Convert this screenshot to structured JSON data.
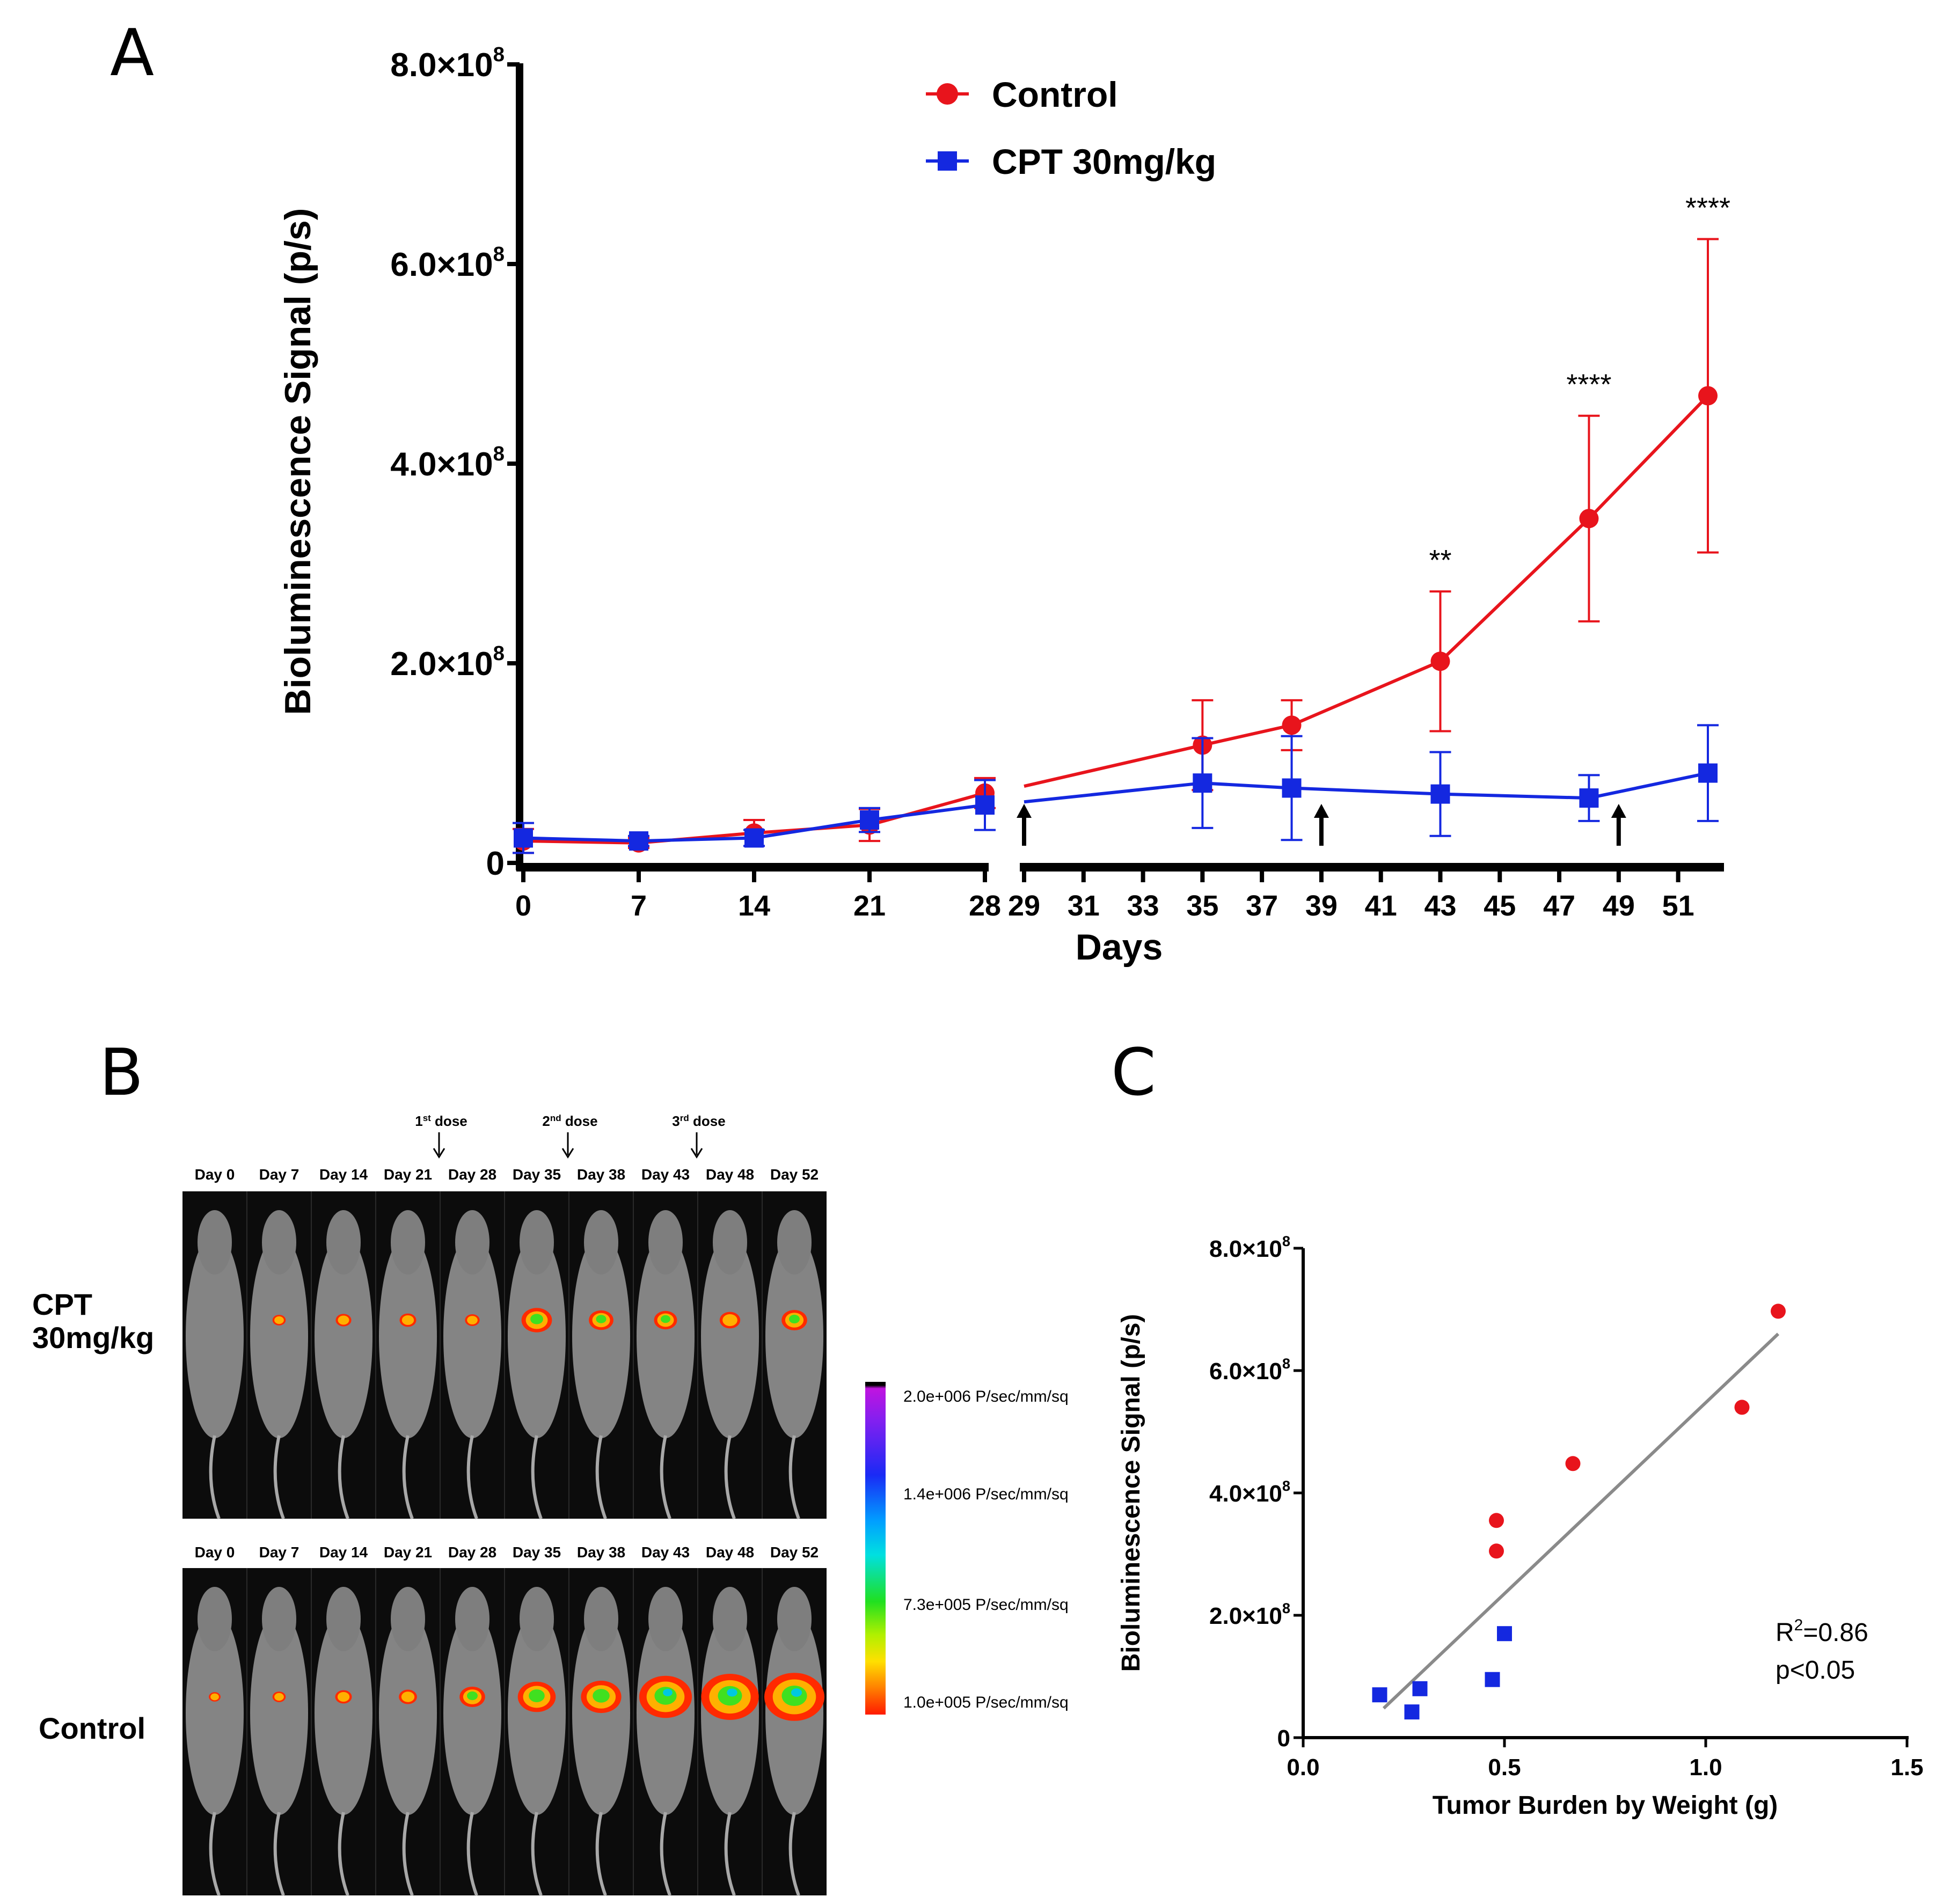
{
  "panels": {
    "a": "A",
    "b": "B",
    "c": "C"
  },
  "chart_data": [
    {
      "type": "line",
      "panel": "A",
      "title": "",
      "xlabel": "Days",
      "ylabel": "Bioluminescence Signal (p/s)",
      "ylim": [
        0,
        800000000
      ],
      "xlim_segment1": [
        0,
        28
      ],
      "xlim_segment2": [
        29,
        52
      ],
      "yticks": [
        {
          "value": 0,
          "label": "0",
          "exp": ""
        },
        {
          "value": 200000000,
          "label": "2.0×10",
          "exp": "8"
        },
        {
          "value": 400000000,
          "label": "4.0×10",
          "exp": "8"
        },
        {
          "value": 600000000,
          "label": "6.0×10",
          "exp": "8"
        },
        {
          "value": 800000000,
          "label": "8.0×10",
          "exp": "8"
        }
      ],
      "xticks_segment1": [
        "0",
        "7",
        "14",
        "21",
        "28"
      ],
      "xticks_segment2": [
        "29",
        "31",
        "33",
        "35",
        "37",
        "39",
        "41",
        "43",
        "45",
        "47",
        "49",
        "51"
      ],
      "series": [
        {
          "name": "Control",
          "color": "#e8141c",
          "marker": "circle",
          "x": [
            0,
            7,
            14,
            21,
            28,
            35,
            38,
            43,
            48,
            52
          ],
          "y": [
            22000000,
            20000000,
            30000000,
            38000000,
            70000000,
            118000000,
            138000000,
            202000000,
            345000000,
            468000000
          ],
          "err": [
            12000000,
            5000000,
            13000000,
            16000000,
            15000000,
            45000000,
            25000000,
            70000000,
            103000000,
            157000000
          ]
        },
        {
          "name": "CPT 30mg/kg",
          "color": "#1428e0",
          "marker": "square",
          "x": [
            0,
            7,
            14,
            21,
            28,
            35,
            38,
            43,
            48,
            52
          ],
          "y": [
            25000000,
            22000000,
            25000000,
            43000000,
            58000000,
            80000000,
            75000000,
            69000000,
            65000000,
            90000000
          ],
          "err": [
            15000000,
            5000000,
            8000000,
            12000000,
            25000000,
            45000000,
            52000000,
            42000000,
            23000000,
            48000000
          ]
        }
      ],
      "annotations": [
        {
          "x": 43,
          "text": "**"
        },
        {
          "x": 48,
          "text": "****"
        },
        {
          "x": 52,
          "text": "****"
        }
      ],
      "dose_arrows_at": [
        29,
        39,
        49
      ]
    },
    {
      "type": "scatter",
      "panel": "C",
      "xlabel": "Tumor Burden by Weight (g)",
      "ylabel": "Bioluminescence Signal (p/s)",
      "xlim": [
        0,
        1.5
      ],
      "ylim": [
        0,
        800000000
      ],
      "xticks": [
        "0.0",
        "0.5",
        "1.0",
        "1.5"
      ],
      "yticks": [
        {
          "value": 0,
          "label": "0",
          "exp": ""
        },
        {
          "value": 200000000,
          "label": "2.0×10",
          "exp": "8"
        },
        {
          "value": 400000000,
          "label": "4.0×10",
          "exp": "8"
        },
        {
          "value": 600000000,
          "label": "6.0×10",
          "exp": "8"
        },
        {
          "value": 800000000,
          "label": "8.0×10",
          "exp": "8"
        }
      ],
      "series": [
        {
          "name": "Control",
          "color": "#e8141c",
          "marker": "circle",
          "x": [
            0.48,
            0.48,
            0.67,
            1.09,
            1.18
          ],
          "y": [
            305000000,
            355000000,
            448000000,
            540000000,
            697000000
          ]
        },
        {
          "name": "CPT 30mg/kg",
          "color": "#1428e0",
          "marker": "square",
          "x": [
            0.19,
            0.27,
            0.29,
            0.47,
            0.5
          ],
          "y": [
            70000000,
            42000000,
            80000000,
            95000000,
            170000000
          ]
        }
      ],
      "fit_line": {
        "x": [
          0.2,
          1.18
        ],
        "y": [
          48000000,
          660000000
        ],
        "color": "#8a8a8a"
      },
      "stats": {
        "r2_prefix": "R",
        "r2_sup": "2",
        "r2_value": "=0.86",
        "p": "p<0.05"
      }
    }
  ],
  "panel_b": {
    "cpt_label_line1": "CPT",
    "cpt_label_line2": "30mg/kg",
    "control_label": "Control",
    "days": [
      "Day 0",
      "Day 7",
      "Day 14",
      "Day 21",
      "Day 28",
      "Day 35",
      "Day 38",
      "Day 43",
      "Day 48",
      "Day 52"
    ],
    "doses": [
      {
        "ord": "1",
        "sup": "st",
        "txt": " dose",
        "between": 4
      },
      {
        "ord": "2",
        "sup": "nd",
        "txt": " dose",
        "between": 6
      },
      {
        "ord": "3",
        "sup": "rd",
        "txt": " dose",
        "between": 8
      }
    ],
    "cpt_signal": [
      0,
      0.05,
      0.1,
      0.12,
      0.08,
      0.4,
      0.28,
      0.25,
      0.2,
      0.3
    ],
    "control_signal": [
      0.02,
      0.05,
      0.12,
      0.15,
      0.3,
      0.55,
      0.6,
      0.85,
      0.95,
      1.0
    ],
    "colorbar_labels": [
      "2.0e+006 P/sec/mm/sq",
      "1.4e+006 P/sec/mm/sq",
      "7.3e+005 P/sec/mm/sq",
      "1.0e+005 P/sec/mm/sq"
    ]
  }
}
